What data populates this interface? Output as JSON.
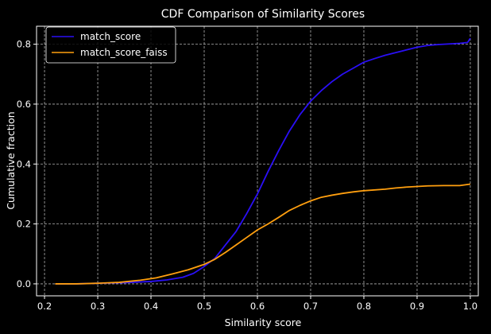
{
  "chart_data": {
    "type": "line",
    "title": "CDF Comparison of Similarity Scores",
    "xlabel": "Similarity score",
    "ylabel": "Cumulative fraction",
    "xlim": [
      0.185,
      1.015
    ],
    "ylim": [
      -0.04,
      0.86
    ],
    "xticks": [
      0.2,
      0.3,
      0.4,
      0.5,
      0.6,
      0.7,
      0.8,
      0.9,
      1.0
    ],
    "xtick_labels": [
      "0.2",
      "0.3",
      "0.4",
      "0.5",
      "0.6",
      "0.7",
      "0.8",
      "0.9",
      "1.0"
    ],
    "yticks": [
      0.0,
      0.2,
      0.4,
      0.6,
      0.8
    ],
    "ytick_labels": [
      "0.0",
      "0.2",
      "0.4",
      "0.6",
      "0.8"
    ],
    "grid": true,
    "legend_position": "top-left",
    "background": "#000000",
    "series": [
      {
        "name": "match_score",
        "color": "#2a0ff5",
        "points": [
          [
            0.22,
            0.0
          ],
          [
            0.26,
            0.0
          ],
          [
            0.3,
            0.002
          ],
          [
            0.35,
            0.004
          ],
          [
            0.4,
            0.008
          ],
          [
            0.43,
            0.013
          ],
          [
            0.46,
            0.022
          ],
          [
            0.48,
            0.035
          ],
          [
            0.5,
            0.058
          ],
          [
            0.52,
            0.085
          ],
          [
            0.54,
            0.13
          ],
          [
            0.56,
            0.175
          ],
          [
            0.58,
            0.235
          ],
          [
            0.6,
            0.3
          ],
          [
            0.62,
            0.375
          ],
          [
            0.64,
            0.445
          ],
          [
            0.66,
            0.51
          ],
          [
            0.68,
            0.565
          ],
          [
            0.7,
            0.61
          ],
          [
            0.72,
            0.645
          ],
          [
            0.74,
            0.675
          ],
          [
            0.76,
            0.7
          ],
          [
            0.78,
            0.72
          ],
          [
            0.8,
            0.74
          ],
          [
            0.82,
            0.752
          ],
          [
            0.84,
            0.763
          ],
          [
            0.86,
            0.772
          ],
          [
            0.88,
            0.781
          ],
          [
            0.9,
            0.79
          ],
          [
            0.92,
            0.796
          ],
          [
            0.94,
            0.799
          ],
          [
            0.96,
            0.801
          ],
          [
            0.98,
            0.803
          ],
          [
            0.995,
            0.806
          ],
          [
            1.0,
            0.82
          ]
        ]
      },
      {
        "name": "match_score_faiss",
        "color": "#ff9f0f",
        "points": [
          [
            0.22,
            0.0
          ],
          [
            0.26,
            0.0
          ],
          [
            0.3,
            0.002
          ],
          [
            0.34,
            0.005
          ],
          [
            0.38,
            0.012
          ],
          [
            0.41,
            0.02
          ],
          [
            0.44,
            0.033
          ],
          [
            0.47,
            0.047
          ],
          [
            0.5,
            0.065
          ],
          [
            0.52,
            0.082
          ],
          [
            0.54,
            0.105
          ],
          [
            0.56,
            0.13
          ],
          [
            0.58,
            0.155
          ],
          [
            0.6,
            0.18
          ],
          [
            0.62,
            0.2
          ],
          [
            0.64,
            0.222
          ],
          [
            0.66,
            0.245
          ],
          [
            0.68,
            0.262
          ],
          [
            0.7,
            0.277
          ],
          [
            0.72,
            0.289
          ],
          [
            0.74,
            0.296
          ],
          [
            0.76,
            0.302
          ],
          [
            0.78,
            0.307
          ],
          [
            0.8,
            0.311
          ],
          [
            0.84,
            0.316
          ],
          [
            0.86,
            0.32
          ],
          [
            0.88,
            0.323
          ],
          [
            0.9,
            0.325
          ],
          [
            0.92,
            0.327
          ],
          [
            0.95,
            0.328
          ],
          [
            0.98,
            0.328
          ],
          [
            1.0,
            0.333
          ]
        ]
      }
    ]
  }
}
